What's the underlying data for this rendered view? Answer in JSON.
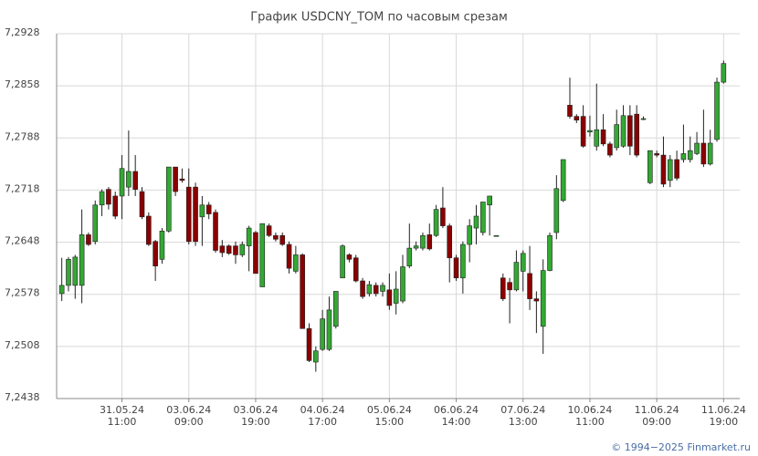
{
  "chart_data": {
    "type": "candlestick",
    "title": "График USDCNY_TOM по часовым срезам",
    "categories": [
      null,
      null,
      null,
      null,
      null,
      null,
      null,
      null,
      null,
      "31.05.24\n11:00",
      null,
      null,
      null,
      null,
      null,
      null,
      null,
      null,
      null,
      "03.06.24\n09:00",
      null,
      null,
      null,
      null,
      null,
      null,
      null,
      null,
      null,
      "03.06.24\n19:00",
      null,
      null,
      null,
      null,
      null,
      null,
      null,
      null,
      null,
      "04.06.24\n17:00",
      null,
      null,
      null,
      null,
      null,
      null,
      null,
      null,
      null,
      "05.06.24\n15:00",
      null,
      null,
      null,
      null,
      null,
      null,
      null,
      null,
      null,
      "06.06.24\n14:00",
      null,
      null,
      null,
      null,
      null,
      null,
      null,
      null,
      null,
      "07.06.24\n13:00",
      null,
      null,
      null,
      null,
      null,
      null,
      null,
      null,
      null,
      "10.06.24\n11:00",
      null,
      null,
      null,
      null,
      null,
      null,
      null,
      null,
      null,
      "11.06.24\n09:00",
      null,
      null,
      null,
      null,
      null,
      null,
      null,
      null,
      null,
      "11.06.24\n19:00"
    ],
    "open": [
      7.2579,
      7.259,
      7.259,
      7.259,
      7.2658,
      7.2649,
      7.2698,
      7.2719,
      7.271,
      7.271,
      7.2722,
      7.2743,
      7.2716,
      7.2683,
      7.2649,
      7.2625,
      7.2663,
      7.2749,
      7.2733,
      7.2722,
      7.2722,
      7.2682,
      7.2698,
      7.2688,
      7.2643,
      7.2643,
      7.2643,
      7.2631,
      7.2643,
      7.2661,
      7.2588,
      7.267,
      7.2657,
      7.2657,
      7.2645,
      7.2609,
      7.2631,
      7.2532,
      7.2487,
      7.2504,
      7.2504,
      7.2535,
      7.26,
      7.2631,
      7.2627,
      7.2596,
      7.2579,
      7.259,
      7.2582,
      7.2584,
      7.2566,
      7.2569,
      7.2616,
      7.264,
      7.264,
      7.2658,
      7.2657,
      7.2694,
      7.267,
      7.2627,
      7.26,
      7.2645,
      7.2667,
      7.2661,
      7.2698,
      7.2657,
      7.26,
      7.2594,
      7.2584,
      7.2609,
      7.2606,
      7.2572,
      7.2535,
      7.261,
      7.2661,
      7.2704,
      7.2832,
      7.2817,
      7.2817,
      7.2796,
      7.2777,
      7.2799,
      7.278,
      7.2775,
      7.2777,
      7.2818,
      7.282,
      7.2814,
      7.2728,
      7.2767,
      7.2765,
      7.2731,
      7.2759,
      7.2759,
      7.2759,
      7.2767,
      7.2781,
      7.2753,
      7.2786,
      7.2863
    ],
    "high": [
      7.2627,
      7.2628,
      7.2631,
      7.2692,
      7.2661,
      7.2704,
      7.2719,
      7.2722,
      7.2716,
      7.2765,
      7.2798,
      7.2765,
      7.2722,
      7.2688,
      7.2651,
      7.2667,
      7.2749,
      7.2749,
      7.2747,
      7.2747,
      7.2728,
      7.271,
      7.2702,
      7.2692,
      7.2651,
      7.2645,
      7.2649,
      7.2649,
      7.267,
      7.2663,
      7.2673,
      7.2673,
      7.2661,
      7.2661,
      7.2649,
      7.2643,
      7.2633,
      7.2539,
      7.2508,
      7.2557,
      7.2575,
      7.2582,
      7.2645,
      7.2633,
      7.2631,
      7.26,
      7.2596,
      7.2594,
      7.2594,
      7.2606,
      7.2609,
      7.2631,
      7.2673,
      7.2649,
      7.2661,
      7.2673,
      7.2698,
      7.2722,
      7.2673,
      7.2631,
      7.2649,
      7.2679,
      7.2698,
      7.2702,
      7.271,
      7.2657,
      7.2606,
      7.26,
      7.2637,
      7.2637,
      7.2643,
      7.2582,
      7.2625,
      7.2661,
      7.2738,
      7.2759,
      7.2869,
      7.282,
      7.2832,
      7.2818,
      7.2861,
      7.282,
      7.2783,
      7.2826,
      7.2832,
      7.2832,
      7.2832,
      7.2817,
      7.2771,
      7.2771,
      7.279,
      7.2765,
      7.2771,
      7.2806,
      7.279,
      7.2796,
      7.2826,
      7.2799,
      7.2869,
      7.2892
    ],
    "low": [
      7.2569,
      7.2582,
      7.2572,
      7.2566,
      7.2643,
      7.2645,
      7.2683,
      7.2692,
      7.2679,
      7.2679,
      7.271,
      7.271,
      7.2679,
      7.2643,
      7.2596,
      7.2619,
      7.2661,
      7.271,
      7.2728,
      7.2645,
      7.2643,
      7.2643,
      7.2679,
      7.2634,
      7.2628,
      7.2631,
      7.2619,
      7.2628,
      7.2609,
      7.2606,
      7.2588,
      7.2655,
      7.2649,
      7.2643,
      7.2606,
      7.2606,
      7.2532,
      7.2487,
      7.2474,
      7.2502,
      7.2502,
      7.2532,
      7.26,
      7.2621,
      7.2594,
      7.2572,
      7.2575,
      7.2575,
      7.2575,
      7.2557,
      7.2551,
      7.2566,
      7.2613,
      7.2637,
      7.2637,
      7.2637,
      7.2655,
      7.2667,
      7.2594,
      7.2596,
      7.2579,
      7.2621,
      7.2645,
      7.2657,
      7.2657,
      7.2657,
      7.2569,
      7.2539,
      7.2582,
      7.2582,
      7.2557,
      7.2526,
      7.2498,
      7.2609,
      7.2652,
      7.2702,
      7.2814,
      7.2808,
      7.2775,
      7.279,
      7.2771,
      7.2777,
      7.2762,
      7.2771,
      7.2775,
      7.2765,
      7.2762,
      7.2812,
      7.2726,
      7.2762,
      7.2722,
      7.2722,
      7.2731,
      7.2755,
      7.2755,
      7.2765,
      7.2749,
      7.2751,
      7.2783,
      7.2861
    ],
    "close": [
      7.259,
      7.2625,
      7.2628,
      7.2658,
      7.2645,
      7.2698,
      7.2716,
      7.2699,
      7.2683,
      7.2747,
      7.2743,
      7.2719,
      7.2682,
      7.2645,
      7.2616,
      7.2663,
      7.2749,
      7.2716,
      7.2731,
      7.2649,
      7.2649,
      7.2698,
      7.2686,
      7.2637,
      7.2634,
      7.2633,
      7.2631,
      7.2645,
      7.2667,
      7.2606,
      7.2673,
      7.2657,
      7.2652,
      7.2645,
      7.2613,
      7.2631,
      7.2532,
      7.2489,
      7.2502,
      7.2545,
      7.2557,
      7.2582,
      7.2643,
      7.2625,
      7.2596,
      7.2575,
      7.2591,
      7.2579,
      7.259,
      7.2563,
      7.2585,
      7.2615,
      7.264,
      7.2643,
      7.2657,
      7.2639,
      7.2692,
      7.267,
      7.2627,
      7.26,
      7.2645,
      7.267,
      7.2683,
      7.2702,
      7.271,
      7.2657,
      7.2572,
      7.2584,
      7.2621,
      7.2633,
      7.2572,
      7.2569,
      7.261,
      7.2657,
      7.272,
      7.2759,
      7.2817,
      7.2812,
      7.2777,
      7.2798,
      7.2799,
      7.278,
      7.2765,
      7.2806,
      7.2818,
      7.2777,
      7.2765,
      7.2814,
      7.2771,
      7.2765,
      7.2726,
      7.2759,
      7.2734,
      7.2767,
      7.2771,
      7.2781,
      7.2753,
      7.2781,
      7.2863,
      7.2888
    ],
    "up_color": "#33a833",
    "down_color": "#8b0000",
    "ylim": [
      7.2438,
      7.2928
    ],
    "yticks": [
      {
        "value": 7.2438,
        "label": "7,2438"
      },
      {
        "value": 7.2508,
        "label": "7,2508"
      },
      {
        "value": 7.2578,
        "label": "7,2578"
      },
      {
        "value": 7.2648,
        "label": "7,2648"
      },
      {
        "value": 7.2718,
        "label": "7,2718"
      },
      {
        "value": 7.2788,
        "label": "7,2788"
      },
      {
        "value": 7.2858,
        "label": "7,2858"
      },
      {
        "value": 7.2928,
        "label": "7,2928"
      }
    ],
    "grid": true
  },
  "footer": "© 1994−2025 Finmarket.ru"
}
